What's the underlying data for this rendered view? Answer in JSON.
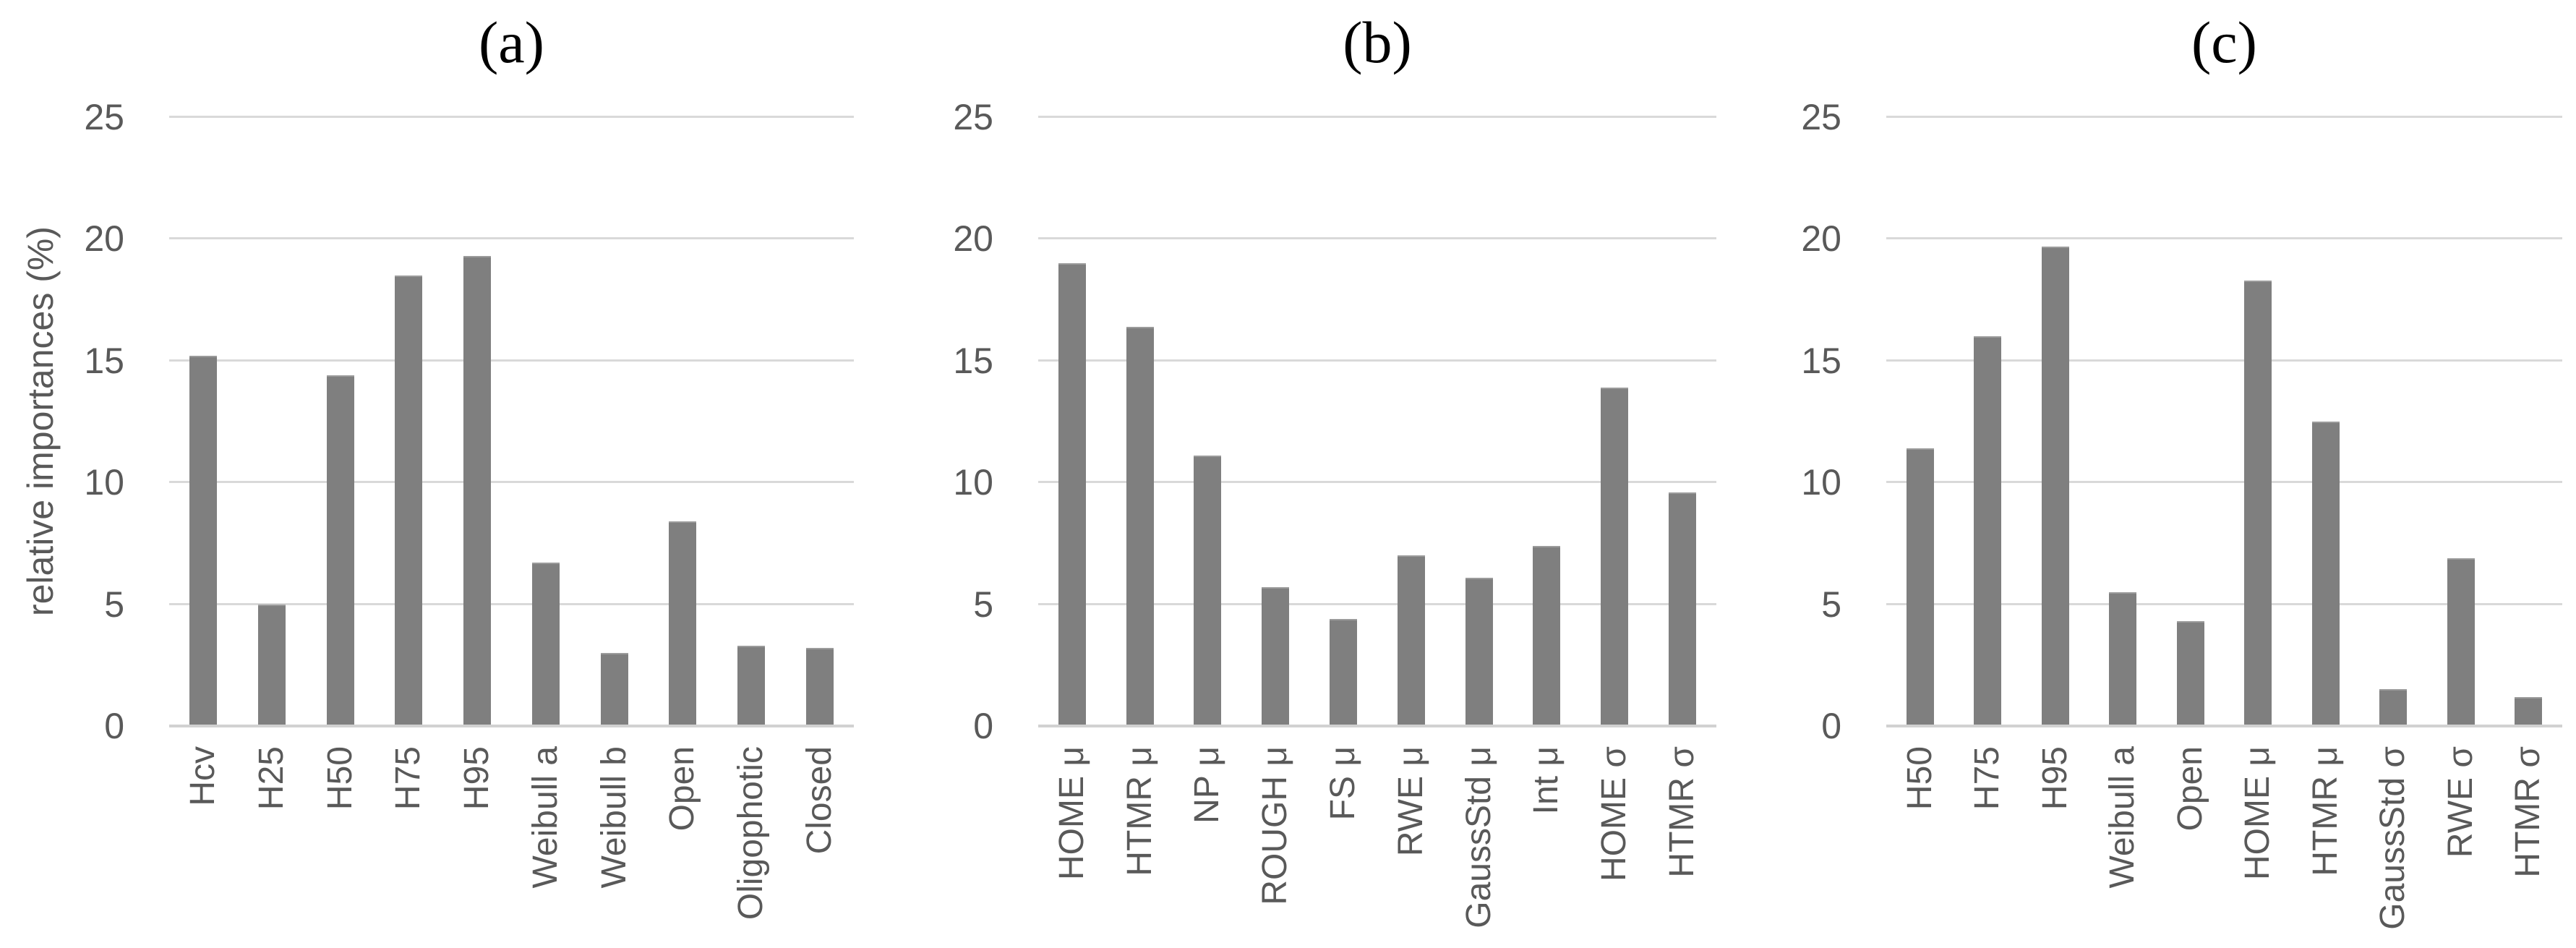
{
  "figure": {
    "ylabel": "relative importances (%)",
    "yticks": [
      0,
      5,
      10,
      15,
      20,
      25
    ],
    "tick_step": 5
  },
  "style": {
    "bar_color": "#7f7f7f",
    "grid_color": "#d9d9d9",
    "axis_color": "#d1d1d1",
    "label_color": "#595959",
    "title_color": "#000000"
  },
  "chart_data": [
    {
      "type": "bar",
      "title": "(a)",
      "ylabel": "relative importances (%)",
      "ylim": [
        0,
        25
      ],
      "grid": true,
      "legend": false,
      "categories": [
        "Hcv",
        "H25",
        "H50",
        "H75",
        "H95",
        "Weibull a",
        "Weibull b",
        "Open",
        "Oligophotic",
        "Closed"
      ],
      "values": [
        15.2,
        5.0,
        14.4,
        18.5,
        19.3,
        6.7,
        3.0,
        8.4,
        3.3,
        3.2
      ]
    },
    {
      "type": "bar",
      "title": "(b)",
      "ylabel": "",
      "ylim": [
        0,
        25
      ],
      "grid": true,
      "legend": false,
      "categories": [
        "HOME μ",
        "HTMR μ",
        "NP μ",
        "ROUGH μ",
        "FS μ",
        "RWE μ",
        "GaussStd μ",
        "Int μ",
        "HOME σ",
        "HTMR σ"
      ],
      "values": [
        19.0,
        16.4,
        11.1,
        5.7,
        4.4,
        7.0,
        6.1,
        7.4,
        13.9,
        9.6
      ]
    },
    {
      "type": "bar",
      "title": "(c)",
      "ylabel": "",
      "ylim": [
        0,
        25
      ],
      "grid": true,
      "legend": false,
      "categories": [
        "H50",
        "H75",
        "H95",
        "Weibull a",
        "Open",
        "HOME μ",
        "HTMR μ",
        "GaussStd σ",
        "RWE σ",
        "HTMR σ"
      ],
      "values": [
        11.4,
        16.0,
        19.7,
        5.5,
        4.3,
        18.3,
        12.5,
        1.5,
        6.9,
        1.2
      ]
    }
  ]
}
